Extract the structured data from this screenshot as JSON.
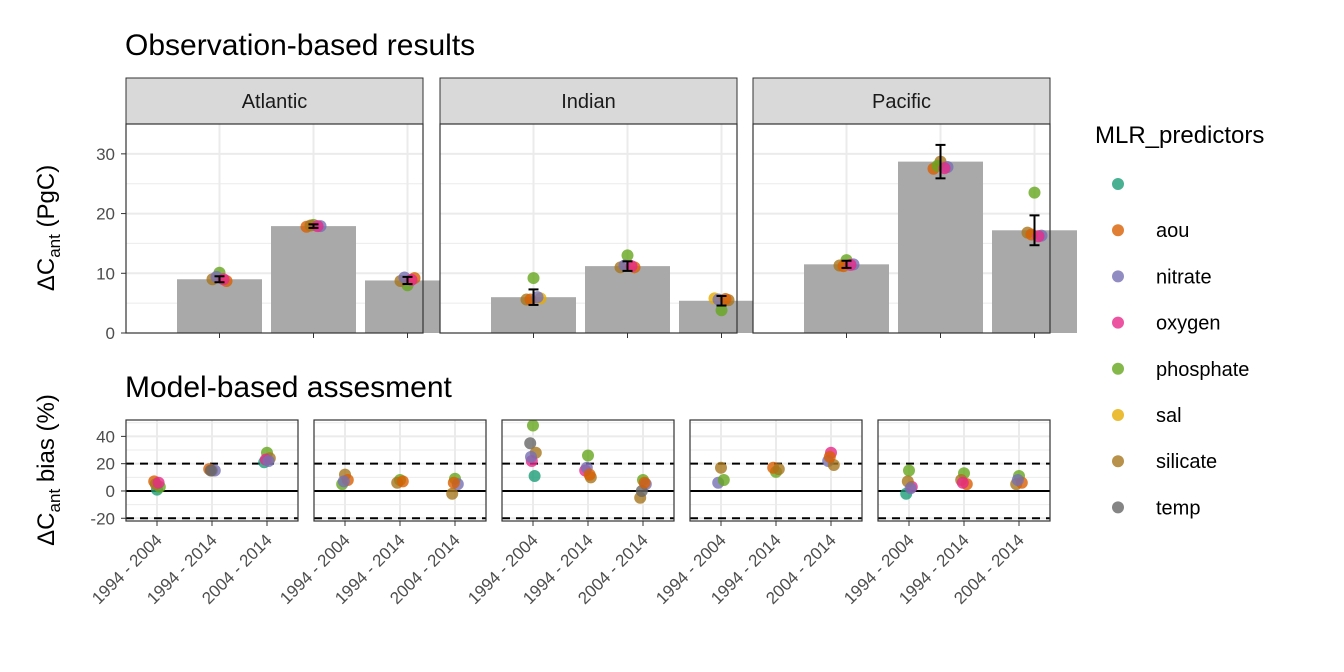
{
  "figure": {
    "top_title": "Observation-based results",
    "bottom_title": "Model-based assesment",
    "legend_title": "MLR_predictors"
  },
  "colors": {
    "": "#1b9e77",
    "aou": "#d95f02",
    "nitrate": "#7570b3",
    "oxygen": "#e7298a",
    "phosphate": "#66a61e",
    "sal": "#e6ab02",
    "silicate": "#a6761d",
    "temp": "#666666",
    "bar": "#a9a9a9",
    "strip": "#d9d9d9"
  },
  "legend": {
    "items": [
      "",
      "aou",
      "nitrate",
      "oxygen",
      "phosphate",
      "sal",
      "silicate",
      "temp"
    ]
  },
  "chart_data": [
    {
      "type": "bar",
      "title": "Observation-based results",
      "ylabel_base": "ΔC",
      "ylabel_sub": "ant",
      "ylabel_rest": " (PgC)",
      "ylim": [
        0,
        35
      ],
      "yticks": [
        0,
        10,
        20,
        30
      ],
      "facets": [
        {
          "name": "Atlantic",
          "values": [
            9.0,
            17.9,
            8.8
          ],
          "errors": [
            0.5,
            0.3,
            0.6
          ],
          "points": [
            [
              {
                "p": "phosphate",
                "y": 10.1
              },
              {
                "p": "silicate",
                "y": 9.0
              },
              {
                "p": "aou",
                "y": 8.7
              },
              {
                "p": "nitrate",
                "y": 9.4
              },
              {
                "p": "oxygen",
                "y": 9.0
              }
            ],
            [
              {
                "p": "phosphate",
                "y": 18.1
              },
              {
                "p": "aou",
                "y": 17.8
              },
              {
                "p": "nitrate",
                "y": 17.9
              },
              {
                "p": "silicate",
                "y": 18.0
              },
              {
                "p": "oxygen",
                "y": 17.9
              }
            ],
            [
              {
                "p": "phosphate",
                "y": 8.0
              },
              {
                "p": "silicate",
                "y": 8.7
              },
              {
                "p": "aou",
                "y": 9.2
              },
              {
                "p": "nitrate",
                "y": 9.3
              },
              {
                "p": "oxygen",
                "y": 8.9
              }
            ]
          ]
        },
        {
          "name": "Indian",
          "values": [
            6.0,
            11.2,
            5.4
          ],
          "errors": [
            1.3,
            0.8,
            0.8
          ],
          "points": [
            [
              {
                "p": "phosphate",
                "y": 9.2
              },
              {
                "p": "silicate",
                "y": 5.6
              },
              {
                "p": "sal",
                "y": 5.8
              },
              {
                "p": "aou",
                "y": 5.6
              },
              {
                "p": "nitrate",
                "y": 6.0
              }
            ],
            [
              {
                "p": "phosphate",
                "y": 13.0
              },
              {
                "p": "silicate",
                "y": 11.0
              },
              {
                "p": "aou",
                "y": 11.0
              },
              {
                "p": "nitrate",
                "y": 11.3
              },
              {
                "p": "oxygen",
                "y": 11.2
              }
            ],
            [
              {
                "p": "phosphate",
                "y": 3.8
              },
              {
                "p": "sal",
                "y": 5.8
              },
              {
                "p": "silicate",
                "y": 5.5
              },
              {
                "p": "nitrate",
                "y": 5.6
              },
              {
                "p": "aou",
                "y": 5.7
              }
            ]
          ]
        },
        {
          "name": "Pacific",
          "values": [
            11.5,
            28.7,
            17.2
          ],
          "errors": [
            0.6,
            2.8,
            2.5
          ],
          "points": [
            [
              {
                "p": "phosphate",
                "y": 12.2
              },
              {
                "p": "silicate",
                "y": 11.3
              },
              {
                "p": "nitrate",
                "y": 11.5
              },
              {
                "p": "aou",
                "y": 11.2
              },
              {
                "p": "oxygen",
                "y": 11.4
              }
            ],
            [
              {
                "p": "silicate",
                "y": 28.7
              },
              {
                "p": "aou",
                "y": 27.5
              },
              {
                "p": "nitrate",
                "y": 27.8
              },
              {
                "p": "phosphate",
                "y": 28.0
              },
              {
                "p": "oxygen",
                "y": 27.6
              }
            ],
            [
              {
                "p": "phosphate",
                "y": 23.5
              },
              {
                "p": "silicate",
                "y": 16.8
              },
              {
                "p": "nitrate",
                "y": 16.3
              },
              {
                "p": "aou",
                "y": 16.5
              },
              {
                "p": "oxygen",
                "y": 16.2
              }
            ]
          ]
        }
      ]
    },
    {
      "type": "scatter",
      "title": "Model-based assesment",
      "ylabel_base": "ΔC",
      "ylabel_sub": "ant",
      "ylabel_rest": " bias (%)",
      "ylim": [
        -22,
        52
      ],
      "yticks": [
        -20,
        0,
        20,
        40
      ],
      "hlines_dashed": [
        -20,
        20
      ],
      "hline_solid": 0,
      "categories": [
        "1994 - 2004",
        "1994 - 2014",
        "2004 - 2014"
      ],
      "panels": [
        [
          [
            {
              "p": "",
              "y": 1
            },
            {
              "p": "aou",
              "y": 7
            },
            {
              "p": "phosphate",
              "y": 3
            },
            {
              "p": "silicate",
              "y": 5
            },
            {
              "p": "oxygen",
              "y": 6
            }
          ],
          [
            {
              "p": "silicate",
              "y": 15
            },
            {
              "p": "aou",
              "y": 16
            },
            {
              "p": "nitrate",
              "y": 15
            },
            {
              "p": "temp",
              "y": 15
            }
          ],
          [
            {
              "p": "phosphate",
              "y": 28
            },
            {
              "p": "",
              "y": 21
            },
            {
              "p": "silicate",
              "y": 24
            },
            {
              "p": "oxygen",
              "y": 23
            },
            {
              "p": "nitrate",
              "y": 22
            }
          ]
        ],
        [
          [
            {
              "p": "silicate",
              "y": 12
            },
            {
              "p": "phosphate",
              "y": 5
            },
            {
              "p": "aou",
              "y": 8
            },
            {
              "p": "nitrate",
              "y": 7
            }
          ],
          [
            {
              "p": "phosphate",
              "y": 8
            },
            {
              "p": "silicate",
              "y": 6
            },
            {
              "p": "aou",
              "y": 7
            }
          ],
          [
            {
              "p": "phosphate",
              "y": 9
            },
            {
              "p": "silicate",
              "y": -2
            },
            {
              "p": "nitrate",
              "y": 5
            },
            {
              "p": "aou",
              "y": 6
            }
          ]
        ],
        [
          [
            {
              "p": "phosphate",
              "y": 48
            },
            {
              "p": "temp",
              "y": 35
            },
            {
              "p": "silicate",
              "y": 28
            },
            {
              "p": "oxygen",
              "y": 22
            },
            {
              "p": "",
              "y": 11
            },
            {
              "p": "nitrate",
              "y": 25
            }
          ],
          [
            {
              "p": "phosphate",
              "y": 26
            },
            {
              "p": "oxygen",
              "y": 15
            },
            {
              "p": "silicate",
              "y": 10
            },
            {
              "p": "nitrate",
              "y": 17
            },
            {
              "p": "aou",
              "y": 12
            }
          ],
          [
            {
              "p": "phosphate",
              "y": 8
            },
            {
              "p": "silicate",
              "y": -5
            },
            {
              "p": "nitrate",
              "y": 5
            },
            {
              "p": "temp",
              "y": 0
            },
            {
              "p": "aou",
              "y": 6
            }
          ]
        ],
        [
          [
            {
              "p": "silicate",
              "y": 17
            },
            {
              "p": "nitrate",
              "y": 6
            },
            {
              "p": "phosphate",
              "y": 8
            }
          ],
          [
            {
              "p": "phosphate",
              "y": 14
            },
            {
              "p": "aou",
              "y": 17
            },
            {
              "p": "silicate",
              "y": 16
            }
          ],
          [
            {
              "p": "oxygen",
              "y": 28
            },
            {
              "p": "nitrate",
              "y": 22
            },
            {
              "p": "silicate",
              "y": 19
            },
            {
              "p": "aou",
              "y": 25
            }
          ]
        ],
        [
          [
            {
              "p": "phosphate",
              "y": 15
            },
            {
              "p": "",
              "y": -2
            },
            {
              "p": "oxygen",
              "y": 3
            },
            {
              "p": "silicate",
              "y": 7
            },
            {
              "p": "nitrate",
              "y": 2
            }
          ],
          [
            {
              "p": "phosphate",
              "y": 13
            },
            {
              "p": "silicate",
              "y": 8
            },
            {
              "p": "aou",
              "y": 5
            },
            {
              "p": "oxygen",
              "y": 6
            }
          ],
          [
            {
              "p": "phosphate",
              "y": 11
            },
            {
              "p": "silicate",
              "y": 5
            },
            {
              "p": "aou",
              "y": 6
            },
            {
              "p": "nitrate",
              "y": 8
            }
          ]
        ]
      ]
    }
  ]
}
